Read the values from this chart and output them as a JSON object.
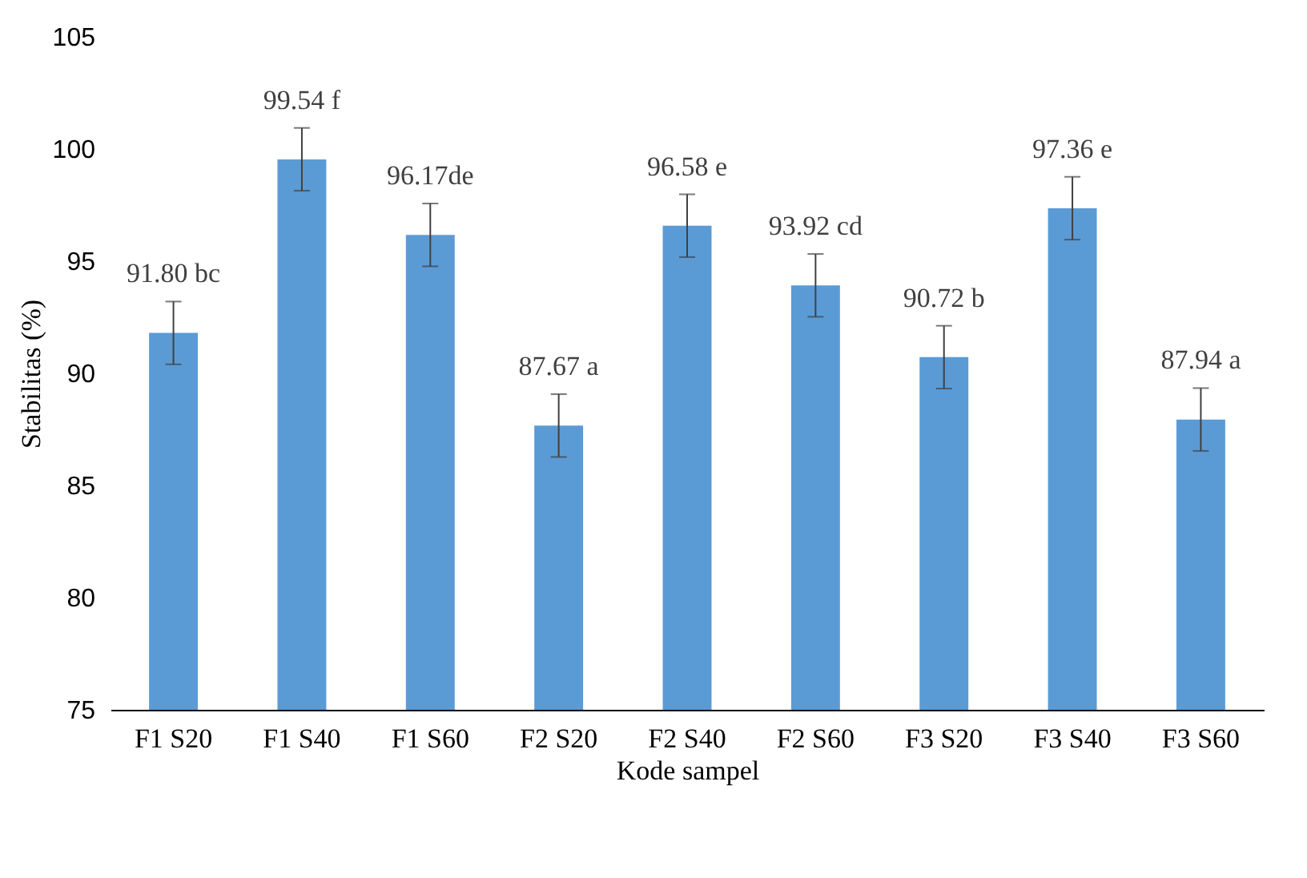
{
  "chart_data": {
    "type": "bar",
    "xlabel": "Kode sampel",
    "ylabel": "Stabilitas (%)",
    "categories": [
      "F1 S20",
      "F1 S40",
      "F1 S60",
      "F2 S20",
      "F2 S40",
      "F2 S60",
      "F3 S20",
      "F3 S40",
      "F3 S60"
    ],
    "values": [
      91.8,
      99.54,
      96.17,
      87.67,
      96.58,
      93.92,
      90.72,
      97.36,
      87.94
    ],
    "errors": [
      1.4,
      1.4,
      1.4,
      1.4,
      1.4,
      1.4,
      1.4,
      1.4,
      1.4
    ],
    "value_labels": [
      "91.80 bc",
      "99.54 f",
      "96.17de",
      "87.67 a",
      "96.58 e",
      "93.92 cd",
      "90.72 b",
      "97.36 e",
      "87.94 a"
    ],
    "color": "#5b9bd5",
    "ylim": [
      75,
      105
    ],
    "yticks": [
      75,
      80,
      85,
      90,
      95,
      100,
      105
    ],
    "grid": false
  }
}
